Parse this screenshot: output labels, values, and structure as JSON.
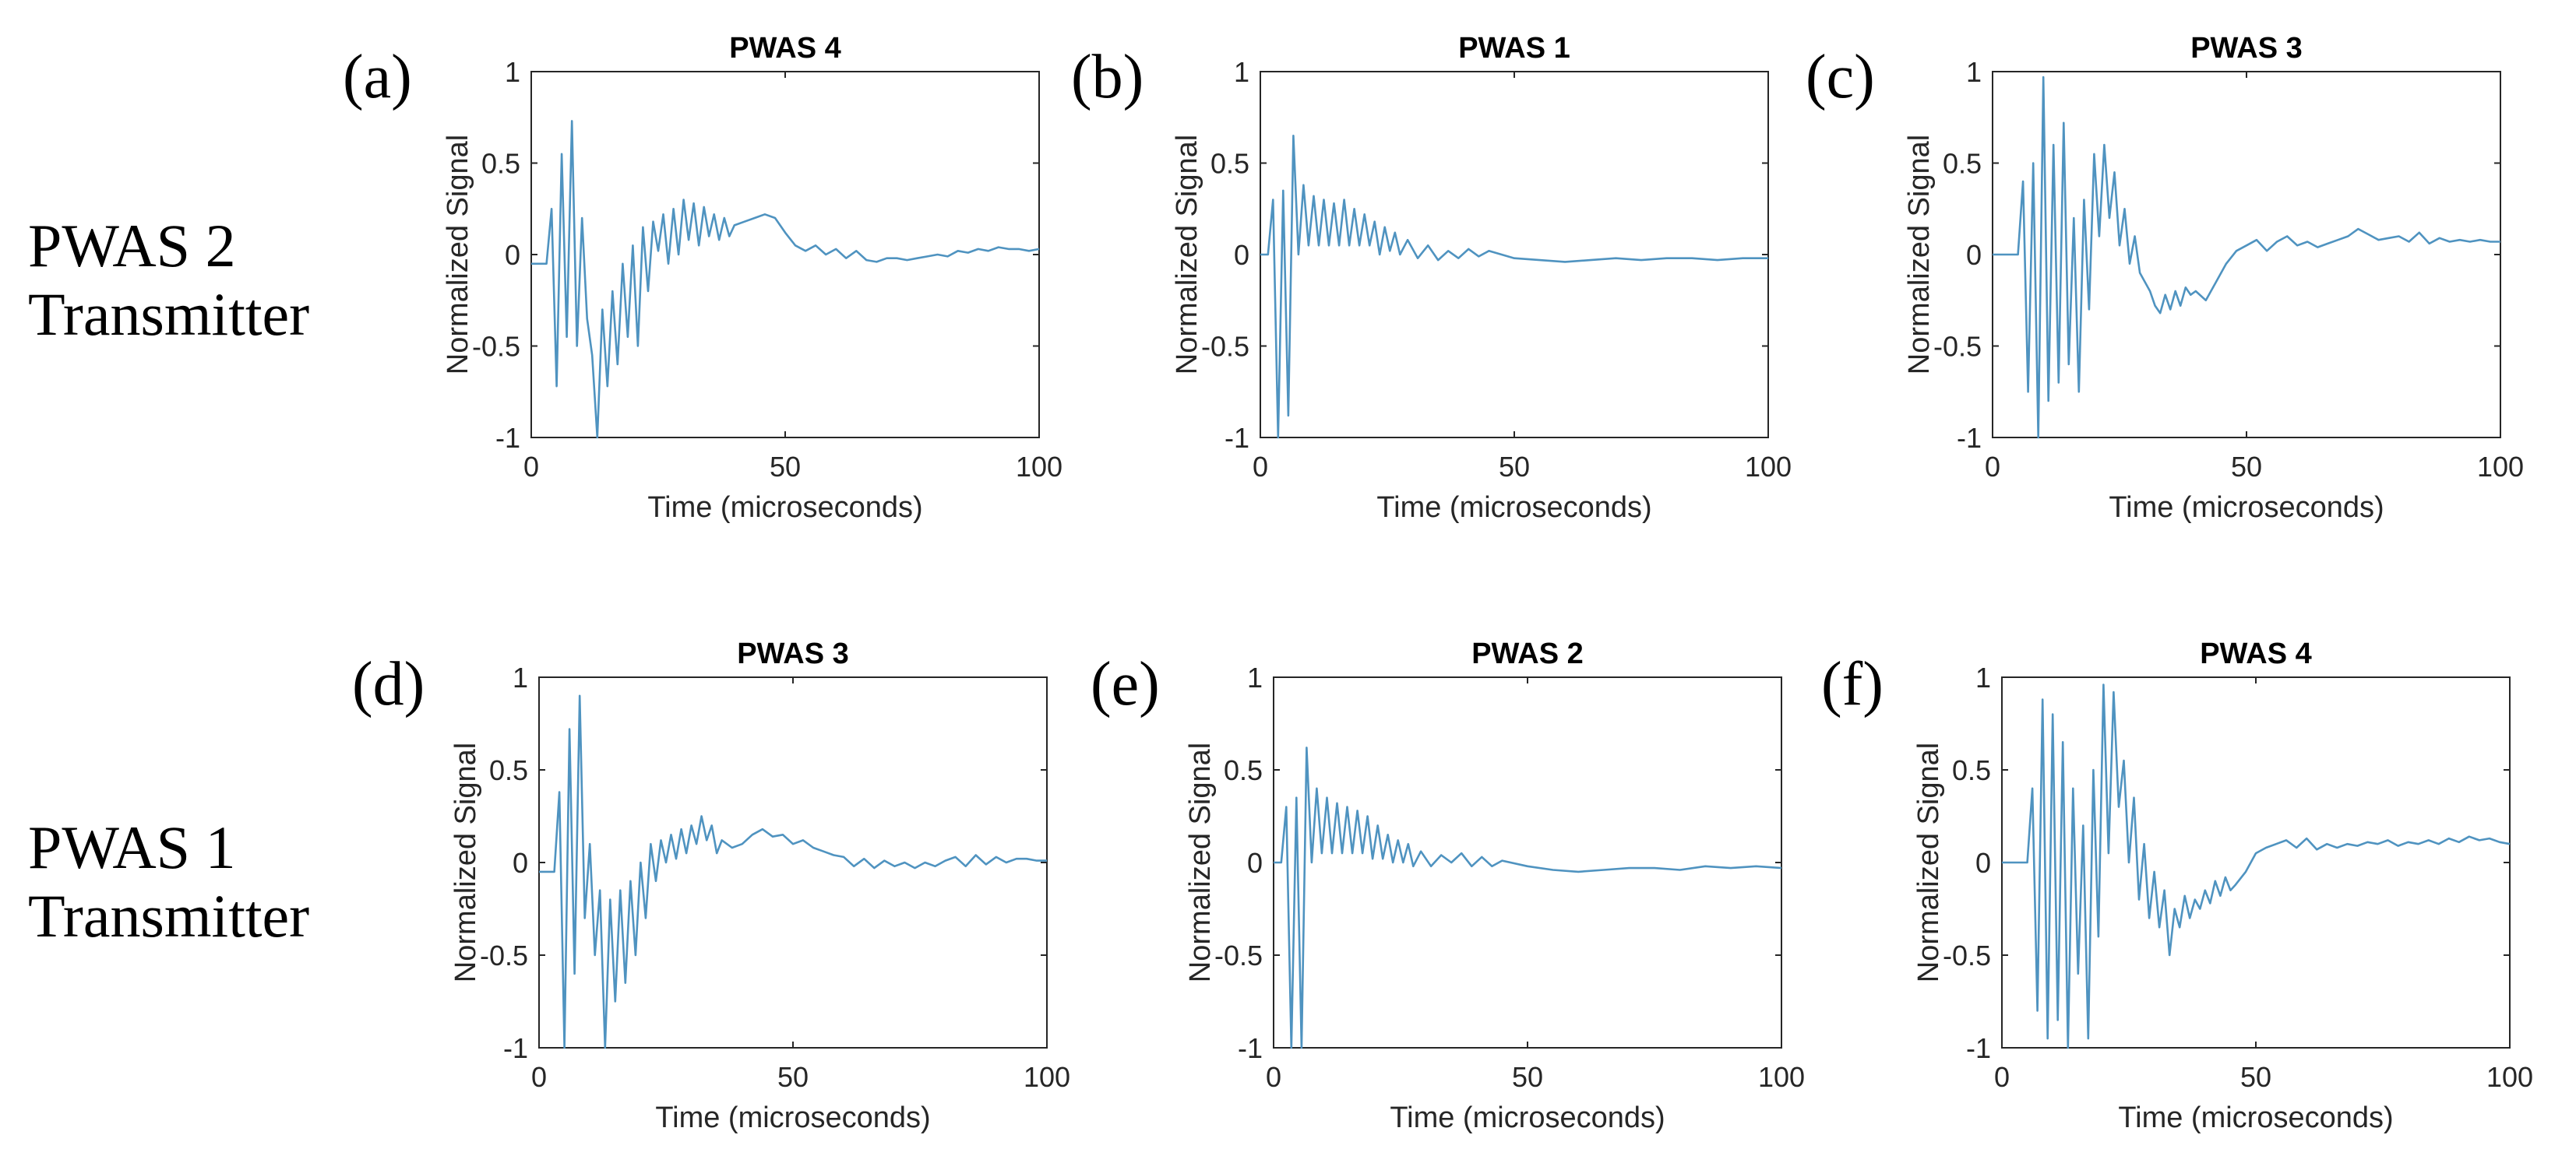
{
  "figure": {
    "row_labels": [
      {
        "line1": "PWAS 2",
        "line2": "Transmitter"
      },
      {
        "line1": "PWAS 1",
        "line2": "Transmitter"
      }
    ],
    "series_color": "#4f93c0",
    "axis_color": "#262626"
  },
  "chart_data": [
    {
      "type": "line",
      "label": "(a)",
      "title": "PWAS 4",
      "row": 1,
      "xlabel": "Time (microseconds)",
      "ylabel": "Normalized Signal",
      "xlim": [
        0,
        100
      ],
      "ylim": [
        -1,
        1
      ],
      "xticks": [
        0,
        50,
        100
      ],
      "yticks": [
        -1,
        -0.5,
        0,
        0.5,
        1
      ],
      "xtick_labels": [
        "0",
        "50",
        "100"
      ],
      "ytick_labels": [
        "-1",
        "-0.5",
        "0",
        "0.5",
        "1"
      ],
      "grid": false,
      "x": [
        0,
        3,
        4,
        5,
        6,
        7,
        8,
        9,
        10,
        11,
        12,
        13,
        14,
        15,
        16,
        17,
        18,
        19,
        20,
        21,
        22,
        23,
        24,
        25,
        26,
        27,
        28,
        29,
        30,
        31,
        32,
        33,
        34,
        35,
        36,
        37,
        38,
        39,
        40,
        42,
        44,
        46,
        48,
        50,
        52,
        54,
        56,
        58,
        60,
        62,
        64,
        66,
        68,
        70,
        72,
        74,
        76,
        78,
        80,
        82,
        84,
        86,
        88,
        90,
        92,
        94,
        96,
        98,
        100
      ],
      "y": [
        -0.05,
        -0.05,
        0.25,
        -0.72,
        0.55,
        -0.45,
        0.73,
        -0.5,
        0.2,
        -0.35,
        -0.55,
        -1.0,
        -0.3,
        -0.72,
        -0.2,
        -0.6,
        -0.05,
        -0.45,
        0.05,
        -0.5,
        0.15,
        -0.2,
        0.18,
        0.02,
        0.22,
        -0.05,
        0.25,
        0.0,
        0.3,
        0.08,
        0.28,
        0.05,
        0.26,
        0.1,
        0.22,
        0.08,
        0.2,
        0.1,
        0.16,
        0.18,
        0.2,
        0.22,
        0.2,
        0.12,
        0.05,
        0.02,
        0.05,
        0.0,
        0.03,
        -0.02,
        0.02,
        -0.03,
        -0.04,
        -0.02,
        -0.02,
        -0.03,
        -0.02,
        -0.01,
        0.0,
        -0.01,
        0.02,
        0.01,
        0.03,
        0.02,
        0.04,
        0.03,
        0.03,
        0.02,
        0.03
      ]
    },
    {
      "type": "line",
      "label": "(b)",
      "title": "PWAS 1",
      "row": 1,
      "xlabel": "Time (microseconds)",
      "ylabel": "Normalized Signal",
      "xlim": [
        0,
        100
      ],
      "ylim": [
        -1,
        1
      ],
      "xticks": [
        0,
        50,
        100
      ],
      "yticks": [
        -1,
        -0.5,
        0,
        0.5,
        1
      ],
      "xtick_labels": [
        "0",
        "50",
        "100"
      ],
      "ytick_labels": [
        "-1",
        "-0.5",
        "0",
        "0.5",
        "1"
      ],
      "grid": false,
      "x": [
        0,
        1.5,
        2.5,
        3.5,
        4.5,
        5.5,
        6.5,
        7.5,
        8.5,
        9.5,
        10.5,
        11.5,
        12.5,
        13.5,
        14.5,
        15.5,
        16.5,
        17.5,
        18.5,
        19.5,
        20.5,
        21.5,
        22.5,
        23.5,
        24.5,
        25.5,
        26.5,
        27.5,
        29,
        31,
        33,
        35,
        37,
        39,
        41,
        43,
        45,
        50,
        55,
        60,
        65,
        70,
        75,
        80,
        85,
        90,
        95,
        100
      ],
      "y": [
        0.0,
        0.0,
        0.3,
        -1.0,
        0.35,
        -0.88,
        0.65,
        0.0,
        0.38,
        0.05,
        0.32,
        0.05,
        0.3,
        0.05,
        0.28,
        0.05,
        0.3,
        0.05,
        0.25,
        0.05,
        0.22,
        0.05,
        0.18,
        0.0,
        0.15,
        0.02,
        0.12,
        0.0,
        0.08,
        -0.02,
        0.05,
        -0.03,
        0.02,
        -0.02,
        0.03,
        -0.01,
        0.02,
        -0.02,
        -0.03,
        -0.04,
        -0.03,
        -0.02,
        -0.03,
        -0.02,
        -0.02,
        -0.03,
        -0.02,
        -0.02
      ]
    },
    {
      "type": "line",
      "label": "(c)",
      "title": "PWAS 3",
      "row": 1,
      "xlabel": "Time (microseconds)",
      "ylabel": "Normalized Signal",
      "xlim": [
        0,
        100
      ],
      "ylim": [
        -1,
        1
      ],
      "xticks": [
        0,
        50,
        100
      ],
      "yticks": [
        -1,
        -0.5,
        0,
        0.5,
        1
      ],
      "xtick_labels": [
        "0",
        "50",
        "100"
      ],
      "ytick_labels": [
        "-1",
        "-0.5",
        "0",
        "0.5",
        "1"
      ],
      "grid": false,
      "x": [
        0,
        5,
        6,
        7,
        8,
        9,
        10,
        11,
        12,
        13,
        14,
        15,
        16,
        17,
        18,
        19,
        20,
        21,
        22,
        23,
        24,
        25,
        26,
        27,
        28,
        29,
        30,
        31,
        32,
        33,
        34,
        35,
        36,
        37,
        38,
        39,
        40,
        42,
        44,
        46,
        48,
        50,
        52,
        54,
        56,
        58,
        60,
        62,
        64,
        66,
        68,
        70,
        72,
        74,
        76,
        78,
        80,
        82,
        84,
        86,
        88,
        90,
        92,
        94,
        96,
        98,
        100
      ],
      "y": [
        0.0,
        0.0,
        0.4,
        -0.75,
        0.5,
        -1.0,
        0.97,
        -0.8,
        0.6,
        -0.7,
        0.72,
        -0.6,
        0.2,
        -0.75,
        0.3,
        -0.3,
        0.55,
        0.1,
        0.6,
        0.2,
        0.45,
        0.05,
        0.25,
        -0.05,
        0.1,
        -0.1,
        -0.15,
        -0.2,
        -0.28,
        -0.32,
        -0.22,
        -0.3,
        -0.2,
        -0.28,
        -0.18,
        -0.22,
        -0.2,
        -0.25,
        -0.15,
        -0.05,
        0.02,
        0.05,
        0.08,
        0.02,
        0.07,
        0.1,
        0.05,
        0.07,
        0.04,
        0.06,
        0.08,
        0.1,
        0.14,
        0.11,
        0.08,
        0.09,
        0.1,
        0.07,
        0.12,
        0.06,
        0.09,
        0.07,
        0.08,
        0.07,
        0.08,
        0.07,
        0.07
      ]
    },
    {
      "type": "line",
      "label": "(d)",
      "title": "PWAS 3",
      "row": 2,
      "xlabel": "Time (microseconds)",
      "ylabel": "Normalized Signal",
      "xlim": [
        0,
        100
      ],
      "ylim": [
        -1,
        1
      ],
      "xticks": [
        0,
        50,
        100
      ],
      "yticks": [
        -1,
        -0.5,
        0,
        0.5,
        1
      ],
      "xtick_labels": [
        "0",
        "50",
        "100"
      ],
      "ytick_labels": [
        "-1",
        "-0.5",
        "0",
        "0.5",
        "1"
      ],
      "grid": false,
      "x": [
        0,
        3,
        4,
        5,
        6,
        7,
        8,
        9,
        10,
        11,
        12,
        13,
        14,
        15,
        16,
        17,
        18,
        19,
        20,
        21,
        22,
        23,
        24,
        25,
        26,
        27,
        28,
        29,
        30,
        31,
        32,
        33,
        34,
        35,
        36,
        38,
        40,
        42,
        44,
        46,
        48,
        50,
        52,
        54,
        56,
        58,
        60,
        62,
        64,
        66,
        68,
        70,
        72,
        74,
        76,
        78,
        80,
        82,
        84,
        86,
        88,
        90,
        92,
        94,
        96,
        98,
        100
      ],
      "y": [
        -0.05,
        -0.05,
        0.38,
        -1.0,
        0.72,
        -0.6,
        0.9,
        -0.3,
        0.1,
        -0.5,
        -0.15,
        -1.0,
        -0.2,
        -0.75,
        -0.15,
        -0.65,
        -0.1,
        -0.5,
        0.0,
        -0.3,
        0.1,
        -0.1,
        0.12,
        0.0,
        0.15,
        0.02,
        0.18,
        0.05,
        0.2,
        0.1,
        0.25,
        0.12,
        0.2,
        0.05,
        0.12,
        0.08,
        0.1,
        0.15,
        0.18,
        0.14,
        0.15,
        0.1,
        0.12,
        0.08,
        0.06,
        0.04,
        0.03,
        -0.02,
        0.02,
        -0.03,
        0.01,
        -0.02,
        0.0,
        -0.03,
        0.0,
        -0.02,
        0.01,
        0.03,
        -0.02,
        0.04,
        -0.01,
        0.03,
        0.0,
        0.02,
        0.02,
        0.01,
        0.01
      ]
    },
    {
      "type": "line",
      "label": "(e)",
      "title": "PWAS 2",
      "row": 2,
      "xlabel": "Time (microseconds)",
      "ylabel": "Normalized Signal",
      "xlim": [
        0,
        100
      ],
      "ylim": [
        -1,
        1
      ],
      "xticks": [
        0,
        50,
        100
      ],
      "yticks": [
        -1,
        -0.5,
        0,
        0.5,
        1
      ],
      "xtick_labels": [
        "0",
        "50",
        "100"
      ],
      "ytick_labels": [
        "-1",
        "-0.5",
        "0",
        "0.5",
        "1"
      ],
      "grid": false,
      "x": [
        0,
        1.5,
        2.5,
        3.5,
        4.5,
        5.5,
        6.5,
        7.5,
        8.5,
        9.5,
        10.5,
        11.5,
        12.5,
        13.5,
        14.5,
        15.5,
        16.5,
        17.5,
        18.5,
        19.5,
        20.5,
        21.5,
        22.5,
        23.5,
        24.5,
        25.5,
        26.5,
        27.5,
        29,
        31,
        33,
        35,
        37,
        39,
        41,
        43,
        45,
        50,
        55,
        60,
        65,
        70,
        75,
        80,
        85,
        90,
        95,
        100
      ],
      "y": [
        0.0,
        0.0,
        0.3,
        -1.0,
        0.35,
        -1.0,
        0.62,
        0.0,
        0.4,
        0.05,
        0.35,
        0.05,
        0.32,
        0.05,
        0.3,
        0.05,
        0.28,
        0.05,
        0.25,
        0.02,
        0.2,
        0.02,
        0.15,
        0.0,
        0.12,
        0.0,
        0.1,
        -0.02,
        0.06,
        -0.02,
        0.04,
        0.0,
        0.05,
        -0.02,
        0.03,
        -0.02,
        0.01,
        -0.02,
        -0.04,
        -0.05,
        -0.04,
        -0.03,
        -0.03,
        -0.04,
        -0.02,
        -0.03,
        -0.02,
        -0.03
      ]
    },
    {
      "type": "line",
      "label": "(f)",
      "title": "PWAS 4",
      "row": 2,
      "xlabel": "Time (microseconds)",
      "ylabel": "Normalized Signal",
      "xlim": [
        0,
        100
      ],
      "ylim": [
        -1,
        1
      ],
      "xticks": [
        0,
        50,
        100
      ],
      "yticks": [
        -1,
        -0.5,
        0,
        0.5,
        1
      ],
      "xtick_labels": [
        "0",
        "50",
        "100"
      ],
      "ytick_labels": [
        "-1",
        "-0.5",
        "0",
        "0.5",
        "1"
      ],
      "grid": false,
      "x": [
        0,
        5,
        6,
        7,
        8,
        9,
        10,
        11,
        12,
        13,
        14,
        15,
        16,
        17,
        18,
        19,
        20,
        21,
        22,
        23,
        24,
        25,
        26,
        27,
        28,
        29,
        30,
        31,
        32,
        33,
        34,
        35,
        36,
        37,
        38,
        39,
        40,
        41,
        42,
        43,
        44,
        45,
        46,
        48,
        50,
        52,
        54,
        56,
        58,
        60,
        62,
        64,
        66,
        68,
        70,
        72,
        74,
        76,
        78,
        80,
        82,
        84,
        86,
        88,
        90,
        92,
        94,
        96,
        98,
        100
      ],
      "y": [
        0.0,
        0.0,
        0.4,
        -0.8,
        0.88,
        -0.95,
        0.8,
        -0.85,
        0.65,
        -1.0,
        0.4,
        -0.6,
        0.2,
        -0.95,
        0.5,
        -0.4,
        0.96,
        0.05,
        0.92,
        0.3,
        0.55,
        0.0,
        0.35,
        -0.2,
        0.1,
        -0.3,
        -0.05,
        -0.35,
        -0.15,
        -0.5,
        -0.25,
        -0.35,
        -0.18,
        -0.3,
        -0.2,
        -0.25,
        -0.15,
        -0.22,
        -0.1,
        -0.18,
        -0.08,
        -0.15,
        -0.12,
        -0.05,
        0.05,
        0.08,
        0.1,
        0.12,
        0.08,
        0.13,
        0.07,
        0.1,
        0.08,
        0.1,
        0.09,
        0.11,
        0.1,
        0.12,
        0.09,
        0.11,
        0.1,
        0.12,
        0.1,
        0.13,
        0.11,
        0.14,
        0.12,
        0.13,
        0.11,
        0.1
      ]
    }
  ]
}
